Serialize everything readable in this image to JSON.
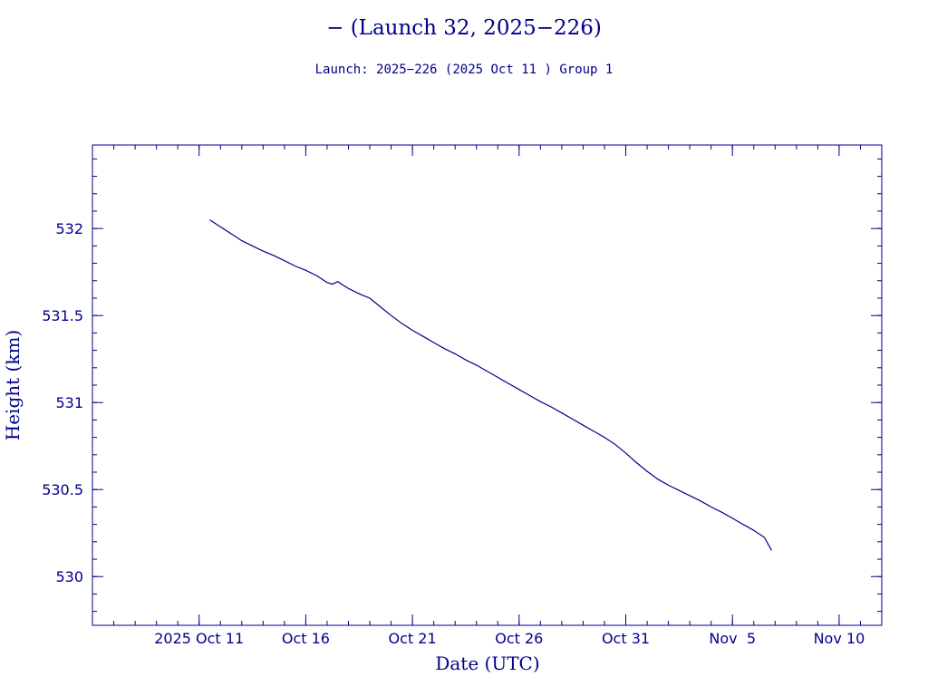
{
  "chart_data": {
    "type": "line",
    "title": "− (Launch 32, 2025−226)",
    "subtitle": "Launch: 2025−226  (2025 Oct 11 )  Group 1",
    "xlabel": "Date (UTC)",
    "ylabel": "Height (km)",
    "xlim": [
      "2025-10-06",
      "2025-11-12"
    ],
    "ylim": [
      529.72,
      532.48
    ],
    "x_ticks": [
      {
        "date": "2025-10-11",
        "label": "2025 Oct 11"
      },
      {
        "date": "2025-10-16",
        "label": "Oct 16"
      },
      {
        "date": "2025-10-21",
        "label": "Oct 21"
      },
      {
        "date": "2025-10-26",
        "label": "Oct 26"
      },
      {
        "date": "2025-10-31",
        "label": "Oct 31"
      },
      {
        "date": "2025-11-05",
        "label": "Nov  5"
      },
      {
        "date": "2025-11-10",
        "label": "Nov 10"
      }
    ],
    "y_ticks": [
      {
        "value": 530,
        "label": "530"
      },
      {
        "value": 530.5,
        "label": "530.5"
      },
      {
        "value": 531,
        "label": "531"
      },
      {
        "value": 531.5,
        "label": "531.5"
      },
      {
        "value": 532,
        "label": "532"
      }
    ],
    "grid": false,
    "colors": {
      "line": "#00008b",
      "axes": "#00008b",
      "text": "#00008b"
    },
    "series": [
      {
        "x": [
          "2025-10-11 12:00",
          "2025-10-12 00:00",
          "2025-10-12 12:00",
          "2025-10-13 00:00",
          "2025-10-13 12:00",
          "2025-10-14 00:00",
          "2025-10-14 12:00",
          "2025-10-15 00:00",
          "2025-10-15 12:00",
          "2025-10-16 00:00",
          "2025-10-16 12:00",
          "2025-10-17 00:00",
          "2025-10-17 06:00",
          "2025-10-17 12:00",
          "2025-10-17 15:00",
          "2025-10-18 00:00",
          "2025-10-18 12:00",
          "2025-10-19 00:00",
          "2025-10-19 12:00",
          "2025-10-20 00:00",
          "2025-10-20 12:00",
          "2025-10-21 00:00",
          "2025-10-21 12:00",
          "2025-10-22 00:00",
          "2025-10-22 12:00",
          "2025-10-23 00:00",
          "2025-10-23 12:00",
          "2025-10-24 00:00",
          "2025-10-24 12:00",
          "2025-10-25 00:00",
          "2025-10-25 12:00",
          "2025-10-26 00:00",
          "2025-10-26 12:00",
          "2025-10-27 00:00",
          "2025-10-27 12:00",
          "2025-10-28 00:00",
          "2025-10-28 12:00",
          "2025-10-29 00:00",
          "2025-10-29 12:00",
          "2025-10-30 00:00",
          "2025-10-30 12:00",
          "2025-10-31 00:00",
          "2025-10-31 12:00",
          "2025-11-01 00:00",
          "2025-11-01 12:00",
          "2025-11-02 00:00",
          "2025-11-02 12:00",
          "2025-11-03 00:00",
          "2025-11-03 12:00",
          "2025-11-04 00:00",
          "2025-11-04 12:00",
          "2025-11-05 00:00",
          "2025-11-05 12:00",
          "2025-11-06 00:00",
          "2025-11-06 12:00",
          "2025-11-06 20:00"
        ],
        "y": [
          532.05,
          532.01,
          531.97,
          531.93,
          531.9,
          531.87,
          531.845,
          531.815,
          531.785,
          531.76,
          531.73,
          531.69,
          531.68,
          531.695,
          531.685,
          531.655,
          531.625,
          531.6,
          531.55,
          531.5,
          531.455,
          531.415,
          531.38,
          531.345,
          531.31,
          531.28,
          531.245,
          531.215,
          531.18,
          531.145,
          531.11,
          531.075,
          531.04,
          531.005,
          530.975,
          530.94,
          530.905,
          530.87,
          530.835,
          530.8,
          530.76,
          530.71,
          530.655,
          530.605,
          530.56,
          530.525,
          530.495,
          530.465,
          530.435,
          530.4,
          530.37,
          530.335,
          530.3,
          530.265,
          530.225,
          530.15
        ]
      }
    ]
  }
}
